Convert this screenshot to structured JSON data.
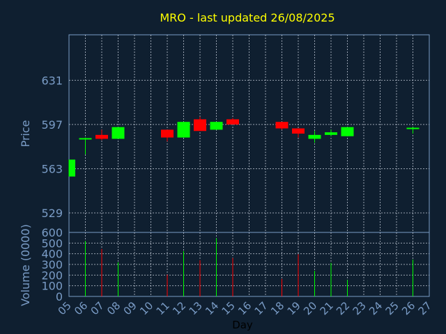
{
  "title": "MRO - last updated 26/08/2025",
  "colors": {
    "background": "#0f1f30",
    "frame": "#7a9cc6",
    "grid": "#c8d0dc",
    "title": "#ffff00",
    "label": "#7a9cc6",
    "xlabel": "#000000",
    "up": "#00ff00",
    "down": "#ff0000"
  },
  "chart_data": [
    {
      "type": "candlestick",
      "ylabel": "Price",
      "y_ticks": [
        529,
        563,
        597,
        631
      ],
      "ylim": [
        514,
        666
      ],
      "grid": true,
      "candles": [
        {
          "day": "05",
          "open": 557,
          "high": 570,
          "low": 557,
          "close": 570
        },
        {
          "day": "06",
          "open": 585,
          "high": 587,
          "low": 574,
          "close": 586
        },
        {
          "day": "07",
          "open": 589,
          "high": 593,
          "low": 585,
          "close": 586
        },
        {
          "day": "08",
          "open": 586,
          "high": 595,
          "low": 586,
          "close": 595
        },
        {
          "day": "11",
          "open": 593,
          "high": 593,
          "low": 584,
          "close": 587
        },
        {
          "day": "12",
          "open": 587,
          "high": 599,
          "low": 587,
          "close": 599
        },
        {
          "day": "13",
          "open": 601,
          "high": 603,
          "low": 592,
          "close": 592
        },
        {
          "day": "14",
          "open": 593,
          "high": 599,
          "low": 593,
          "close": 599
        },
        {
          "day": "15",
          "open": 601,
          "high": 602,
          "low": 597,
          "close": 597
        },
        {
          "day": "18",
          "open": 599,
          "high": 599,
          "low": 593,
          "close": 594
        },
        {
          "day": "19",
          "open": 594,
          "high": 594,
          "low": 587,
          "close": 590
        },
        {
          "day": "20",
          "open": 586,
          "high": 592,
          "low": 583,
          "close": 589
        },
        {
          "day": "21",
          "open": 589,
          "high": 593,
          "low": 588,
          "close": 591
        },
        {
          "day": "22",
          "open": 588,
          "high": 595,
          "low": 588,
          "close": 595
        },
        {
          "day": "26",
          "open": 594,
          "high": 595,
          "low": 590,
          "close": 594
        }
      ]
    },
    {
      "type": "bar",
      "ylabel": "Volume (0000)",
      "xlabel": "Day",
      "y_ticks": [
        0,
        100,
        200,
        300,
        400,
        500,
        600
      ],
      "ylim": [
        0,
        600
      ],
      "grid": true,
      "categories": [
        "05",
        "06",
        "07",
        "08",
        "09",
        "10",
        "11",
        "12",
        "13",
        "14",
        "15",
        "16",
        "17",
        "18",
        "19",
        "20",
        "21",
        "22",
        "23",
        "24",
        "25",
        "26",
        "27"
      ],
      "bars": [
        {
          "day": "06",
          "value": 520,
          "direction": "up"
        },
        {
          "day": "07",
          "value": 445,
          "direction": "down"
        },
        {
          "day": "08",
          "value": 320,
          "direction": "up"
        },
        {
          "day": "11",
          "value": 205,
          "direction": "down"
        },
        {
          "day": "12",
          "value": 425,
          "direction": "up"
        },
        {
          "day": "13",
          "value": 340,
          "direction": "down"
        },
        {
          "day": "14",
          "value": 545,
          "direction": "up"
        },
        {
          "day": "15",
          "value": 360,
          "direction": "down"
        },
        {
          "day": "18",
          "value": 165,
          "direction": "down"
        },
        {
          "day": "19",
          "value": 395,
          "direction": "down"
        },
        {
          "day": "20",
          "value": 240,
          "direction": "up"
        },
        {
          "day": "21",
          "value": 315,
          "direction": "up"
        },
        {
          "day": "22",
          "value": 155,
          "direction": "up"
        },
        {
          "day": "26",
          "value": 345,
          "direction": "up"
        }
      ]
    }
  ]
}
